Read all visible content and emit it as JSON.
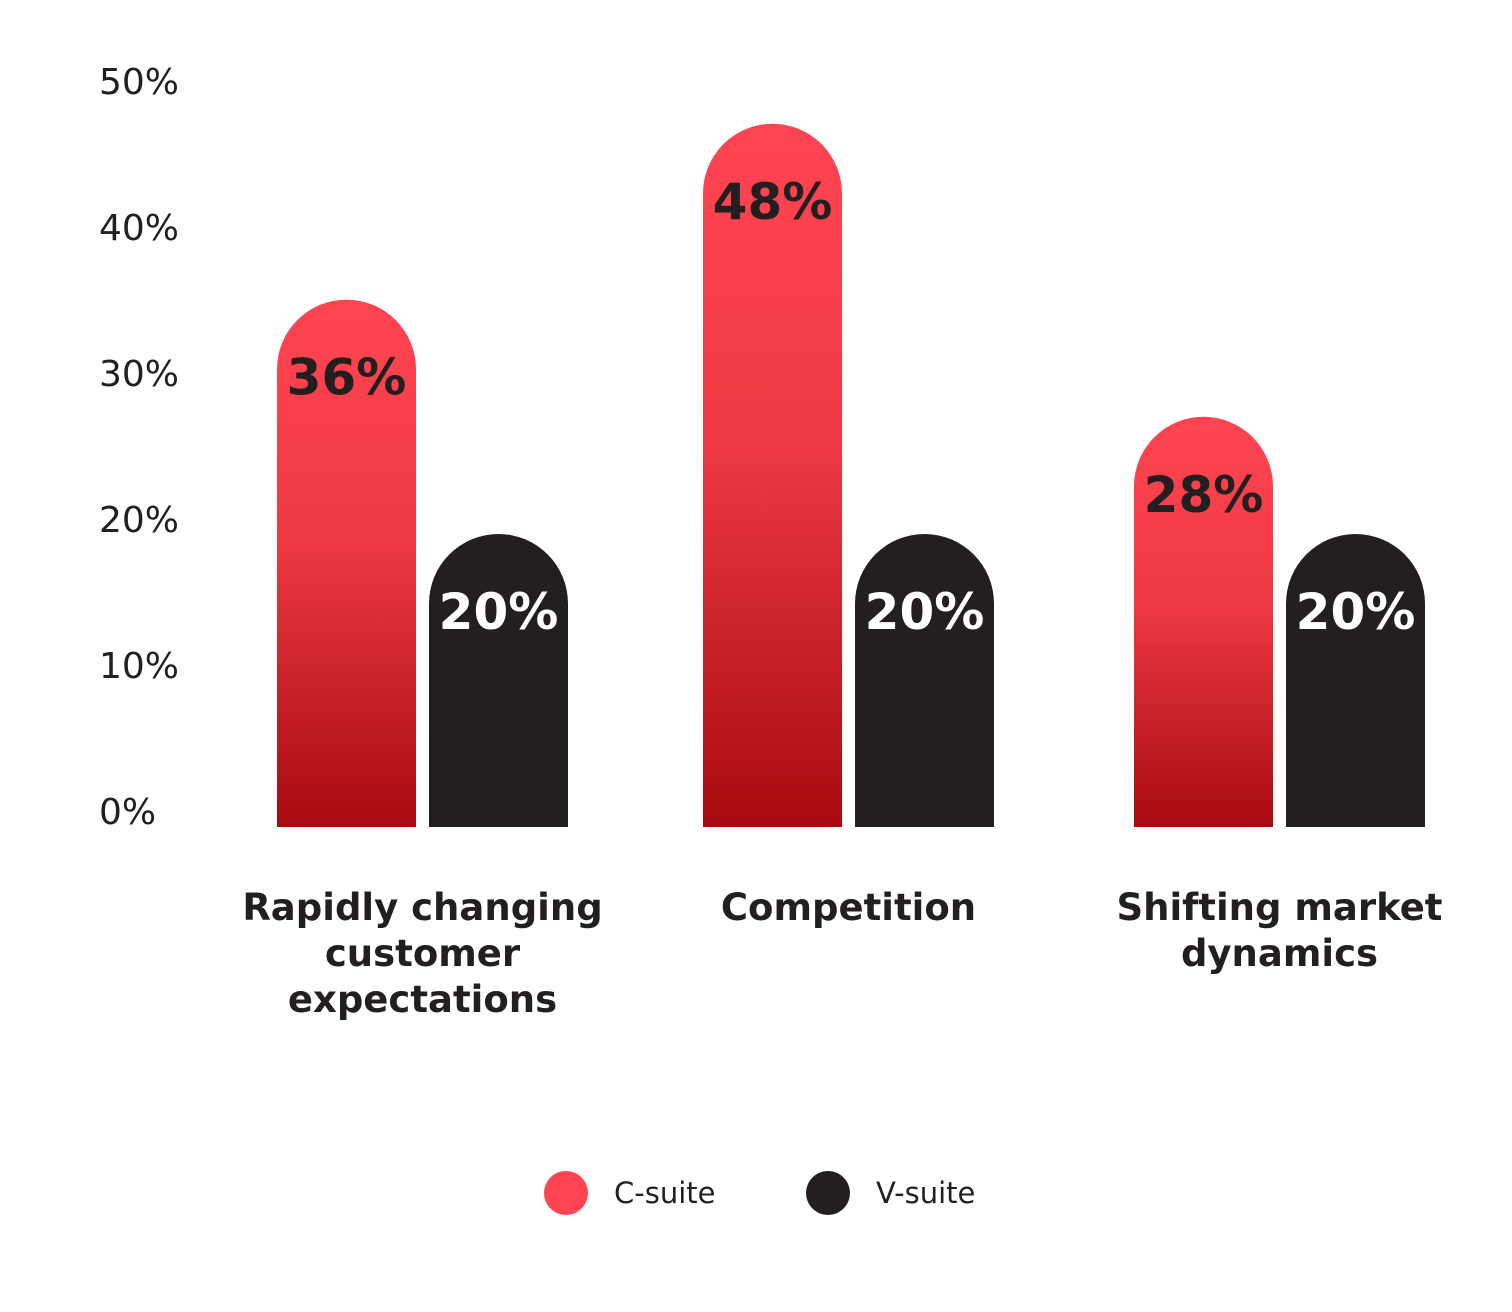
{
  "chart_data": {
    "type": "bar",
    "categories": [
      [
        "Rapidly changing",
        "customer",
        "expectations"
      ],
      [
        "Competition"
      ],
      [
        "Shifting market",
        "dynamics"
      ]
    ],
    "series": [
      {
        "name": "C-suite",
        "values": [
          36,
          48,
          28
        ],
        "labels": [
          "36%",
          "48%",
          "28%"
        ],
        "color": "#ff4452",
        "color_dark": "#a70a10",
        "label_color": "#231f20"
      },
      {
        "name": "V-suite",
        "values": [
          20,
          20,
          20
        ],
        "labels": [
          "20%",
          "20%",
          "20%"
        ],
        "color": "#231f20",
        "label_color": "#ffffff"
      }
    ],
    "y_ticks": [
      "0%",
      "10%",
      "20%",
      "30%",
      "40%",
      "50%"
    ],
    "ylim": [
      0,
      50
    ],
    "grid": false,
    "legend_position": "bottom-center",
    "title": "",
    "xlabel": "",
    "ylabel": ""
  }
}
